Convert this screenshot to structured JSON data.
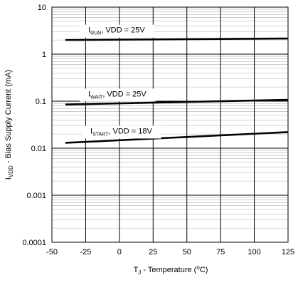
{
  "chart_data": {
    "type": "line",
    "y_scale": "log",
    "xlim": [
      -50,
      125
    ],
    "ylim": [
      0.0001,
      10
    ],
    "x_ticks": [
      "-50",
      "-25",
      "0",
      "25",
      "50",
      "75",
      "100",
      "125"
    ],
    "y_ticks": [
      "0.0001",
      "0.001",
      "0.01",
      "0.1",
      "1",
      "10"
    ],
    "xlabel": {
      "main": "T",
      "sub": "J",
      "rest": " - Temperature (",
      "sup": "o",
      "end": "C)"
    },
    "ylabel": {
      "main": "I",
      "sub": "VDD",
      "rest": " - Bias Supply Current (mA)"
    },
    "grid": true,
    "series": [
      {
        "name": {
          "main": "I",
          "sub": "RUN",
          "rest": ", VDD = 25V"
        },
        "x": [
          -40,
          125
        ],
        "y": [
          2.0,
          2.15
        ]
      },
      {
        "name": {
          "main": "I",
          "sub": "WAIT",
          "rest": ", VDD = 25V"
        },
        "x": [
          -40,
          125
        ],
        "y": [
          0.085,
          0.107
        ]
      },
      {
        "name": {
          "main": "I",
          "sub": "START",
          "rest": ", VDD = 18V"
        },
        "x": [
          -40,
          125
        ],
        "y": [
          0.013,
          0.022
        ]
      }
    ]
  }
}
